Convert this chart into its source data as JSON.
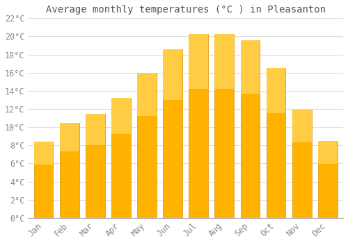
{
  "title": "Average monthly temperatures (°C ) in Pleasanton",
  "months": [
    "Jan",
    "Feb",
    "Mar",
    "Apr",
    "May",
    "Jun",
    "Jul",
    "Aug",
    "Sep",
    "Oct",
    "Nov",
    "Dec"
  ],
  "values": [
    8.4,
    10.5,
    11.5,
    13.2,
    16.0,
    18.6,
    20.3,
    20.3,
    19.6,
    16.5,
    11.9,
    8.5
  ],
  "bar_color": "#FFB300",
  "bar_edge_color": "#E09000",
  "background_color": "#FFFFFF",
  "grid_color": "#DDDDDD",
  "text_color": "#888888",
  "title_color": "#555555",
  "ylim": [
    0,
    22
  ],
  "ytick_step": 2,
  "title_fontsize": 10,
  "tick_fontsize": 8.5,
  "bar_width": 0.75
}
